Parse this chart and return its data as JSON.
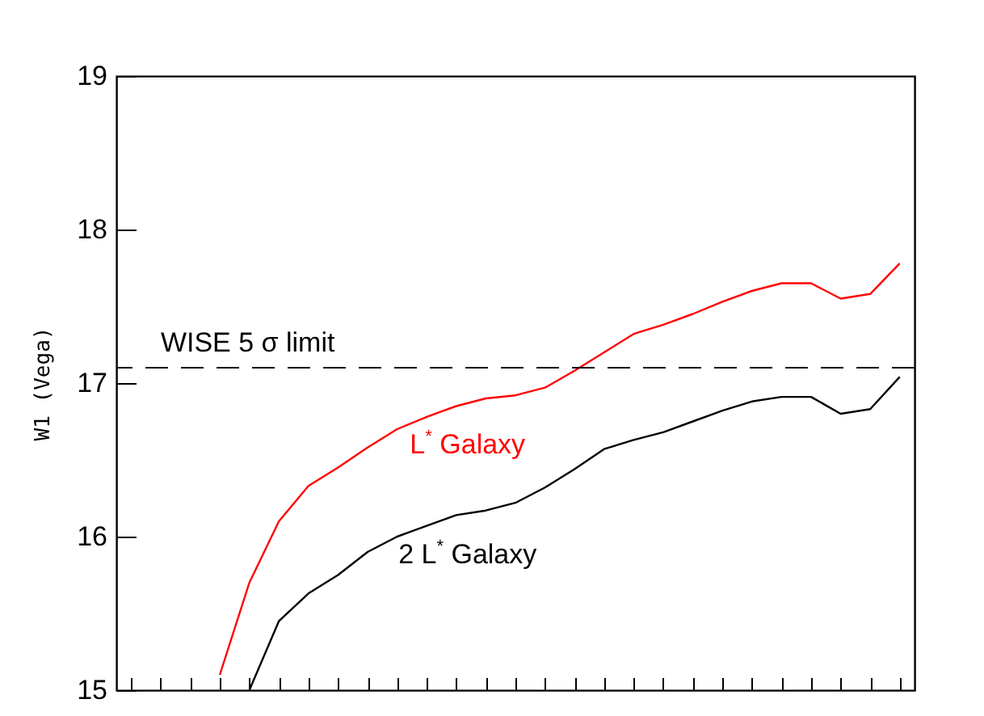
{
  "chart_data": {
    "type": "line",
    "ylabel": "W1 (Vega)",
    "categories": [
      null,
      null,
      null,
      null,
      null,
      null,
      null,
      null,
      null,
      null,
      null,
      null,
      null,
      null,
      null,
      null,
      null,
      null,
      null,
      null,
      null,
      null,
      null,
      null,
      null,
      null,
      null
    ],
    "series": [
      {
        "name": "L$^{*}$ Galaxy",
        "color": "#ff0000",
        "values": [
          null,
          null,
          null,
          15.1,
          15.7,
          16.1,
          16.33,
          16.45,
          16.58,
          16.7,
          16.78,
          16.85,
          16.9,
          16.92,
          16.97,
          17.08,
          17.2,
          17.32,
          17.38,
          17.45,
          17.53,
          17.6,
          17.65,
          17.65,
          17.55,
          17.58,
          17.78
        ]
      },
      {
        "name": "2 L$^{*}$ Galaxy",
        "color": "#000000",
        "values": [
          null,
          null,
          null,
          null,
          15.0,
          15.45,
          15.63,
          15.75,
          15.9,
          16.0,
          16.07,
          16.14,
          16.17,
          16.22,
          16.32,
          16.44,
          16.57,
          16.63,
          16.68,
          16.75,
          16.82,
          16.88,
          16.91,
          16.91,
          16.8,
          16.83,
          17.04
        ]
      }
    ],
    "ylim": [
      15,
      19
    ],
    "yticks": [
      15,
      16,
      17,
      18,
      19
    ],
    "tick_labels": "y",
    "grid": false,
    "legend": false,
    "marker": "none",
    "line_style": "solid",
    "ref_lines": [
      {
        "axis": "y",
        "value": 17.1,
        "label": "WISE 5 σ limit",
        "color": "#000000",
        "line_style": "dashed"
      }
    ]
  }
}
